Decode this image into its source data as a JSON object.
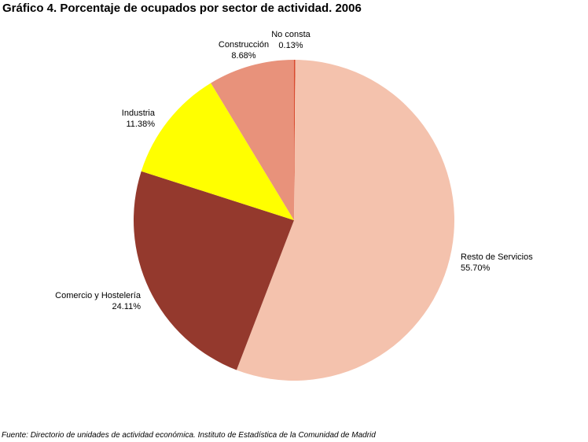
{
  "chart_data": {
    "type": "pie",
    "title": "Gráfico 4. Porcentaje de ocupados por sector de actividad. 2006",
    "slices": [
      {
        "name": "No consta",
        "value": 0.13,
        "label": "0.13%",
        "color": "#d84a2e"
      },
      {
        "name": "Resto de Servicios",
        "value": 55.7,
        "label": "55.70%",
        "color": "#f4c2ad"
      },
      {
        "name": "Comercio y Hostelería",
        "value": 24.11,
        "label": "24.11%",
        "color": "#94392d"
      },
      {
        "name": "Industria",
        "value": 11.38,
        "label": "11.38%",
        "color": "#ffff00"
      },
      {
        "name": "Construcción",
        "value": 8.68,
        "label": "8.68%",
        "color": "#e8927b"
      }
    ]
  },
  "source": "Fuente: Directorio de unidades de actividad económica. Instituto de Estadística de la Comunidad de Madrid"
}
